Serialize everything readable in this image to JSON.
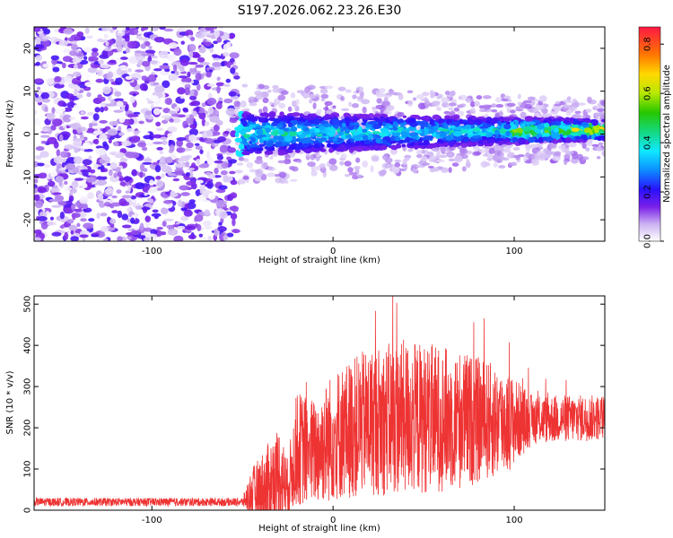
{
  "title": "S197.2026.062.23.26.E30",
  "chart_data": [
    {
      "type": "heatmap",
      "name": "spectrogram",
      "xlabel": "Height of straight line (km)",
      "ylabel": "Frequency (Hz)",
      "xlim": [
        -165,
        150
      ],
      "ylim": [
        -25,
        25
      ],
      "xticks": [
        -100,
        0,
        100
      ],
      "yticks": [
        -20,
        -10,
        0,
        10,
        20
      ],
      "colorbar": {
        "label": "Normalized spectral amplitude",
        "range": [
          0.0,
          0.87
        ],
        "ticks": [
          0.0,
          0.2,
          0.4,
          0.6,
          0.8
        ]
      },
      "regions": [
        {
          "x_range": [
            -165,
            -53
          ],
          "description": "broadband noise",
          "amplitude_max": 0.12
        },
        {
          "x_range": [
            -53,
            150
          ],
          "description": "signal band",
          "center_hz": 0,
          "center_end_hz": 1,
          "halfwidth_hz": 5,
          "amplitude_max": 0.87
        }
      ]
    },
    {
      "type": "line",
      "name": "snr",
      "xlabel": "Height of straight line (km)",
      "ylabel": "SNR (10 * v/v)",
      "xlim": [
        -165,
        150
      ],
      "ylim": [
        0,
        520
      ],
      "xticks": [
        -100,
        0,
        100
      ],
      "yticks": [
        0,
        100,
        200,
        300,
        400,
        500
      ],
      "color": "#ee3333",
      "envelope": [
        {
          "x": -165,
          "base": 20,
          "spread": 10
        },
        {
          "x": -50,
          "base": 20,
          "spread": 10
        },
        {
          "x": -45,
          "base": 40,
          "spread": 60
        },
        {
          "x": -35,
          "base": 60,
          "spread": 110
        },
        {
          "x": -30,
          "base": 90,
          "spread": 120
        },
        {
          "x": -25,
          "base": 55,
          "spread": 70
        },
        {
          "x": -20,
          "base": 150,
          "spread": 140
        },
        {
          "x": -10,
          "base": 140,
          "spread": 130
        },
        {
          "x": 0,
          "base": 180,
          "spread": 160
        },
        {
          "x": 20,
          "base": 215,
          "spread": 180
        },
        {
          "x": 40,
          "base": 225,
          "spread": 190
        },
        {
          "x": 70,
          "base": 220,
          "spread": 170
        },
        {
          "x": 95,
          "base": 215,
          "spread": 130
        },
        {
          "x": 110,
          "base": 220,
          "spread": 60
        },
        {
          "x": 150,
          "base": 225,
          "spread": 55
        }
      ],
      "peak": {
        "x": 33,
        "y": 520
      }
    }
  ]
}
